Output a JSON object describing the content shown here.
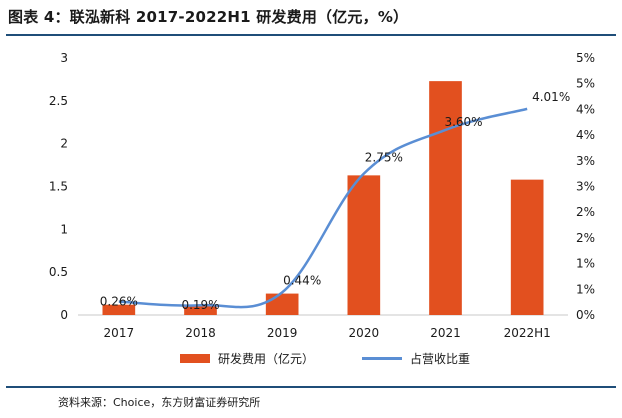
{
  "figure": {
    "title": "图表 4：联泓新科 2017-2022H1 研发费用（亿元，%）",
    "source": "资料来源：Choice，东方财富证券研究所"
  },
  "colors": {
    "bar": "#e2501f",
    "line": "#5a8ed4",
    "rule": "#1f4e79",
    "axis": "#c8c8c8"
  },
  "chart_data": {
    "type": "bar+line",
    "categories": [
      "2017",
      "2018",
      "2019",
      "2020",
      "2021",
      "2022H1"
    ],
    "series": [
      {
        "name": "研发费用（亿元）",
        "type": "bar",
        "axis": "left",
        "values": [
          0.12,
          0.12,
          0.25,
          1.63,
          2.73,
          1.58
        ]
      },
      {
        "name": "占营收比重",
        "type": "line",
        "axis": "right",
        "unit": "%",
        "values": [
          0.26,
          0.19,
          0.44,
          2.75,
          3.6,
          4.01
        ],
        "labels": [
          "0.26%",
          "0.19%",
          "0.44%",
          "2.75%",
          "3.60%",
          "4.01%"
        ]
      }
    ],
    "y_left": {
      "ylim": [
        0,
        3
      ],
      "ticks": [
        "0",
        "0.5",
        "1",
        "1.5",
        "2",
        "2.5",
        "3"
      ],
      "tick_values": [
        0,
        0.5,
        1,
        1.5,
        2,
        2.5,
        3
      ]
    },
    "y_right": {
      "ylim": [
        0,
        5
      ],
      "ticks": [
        "0%",
        "1%",
        "1%",
        "2%",
        "2%",
        "3%",
        "3%",
        "4%",
        "4%",
        "5%",
        "5%"
      ],
      "tick_values": [
        0,
        0.5,
        1,
        1.5,
        2,
        2.5,
        3,
        3.5,
        4,
        4.5,
        5
      ]
    },
    "legend": {
      "placement": "bottom",
      "items": [
        "研发费用（亿元）",
        "占营收比重"
      ]
    },
    "grid": false
  }
}
